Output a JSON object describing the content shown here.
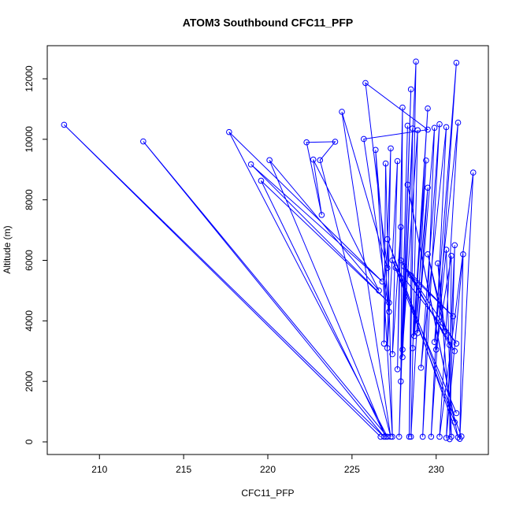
{
  "chart_data": {
    "type": "line",
    "title": "ATOM3 Southbound CFC11_PFP",
    "x_label": "CFC11_PFP",
    "y_label": "Altitude (m)",
    "color": "#0000ff",
    "markers": true,
    "xlim": [
      206.9,
      233.1
    ],
    "ylim": [
      -417,
      13094
    ],
    "xticks": [
      210,
      215,
      220,
      225,
      230
    ],
    "yticks": [
      0,
      2000,
      4000,
      6000,
      8000,
      10000,
      12000
    ],
    "x": [
      226.7,
      207.9,
      226.9,
      212.6,
      227.1,
      217.7,
      226.8,
      219.0,
      227.2,
      219.6,
      227.0,
      220.1,
      226.6,
      222.7,
      223.2,
      222.3,
      224.0,
      223.1,
      227.3,
      224.4,
      227.1,
      225.8,
      229.5,
      225.7,
      227.2,
      226.4,
      227.4,
      227.0,
      226.9,
      227.3,
      227.1,
      227.7,
      227.4,
      227.9,
      227.7,
      228.0,
      227.9,
      228.3,
      227.8,
      228.5,
      228.0,
      228.8,
      228.4,
      228.6,
      228.0,
      228.9,
      228.5,
      229.4,
      228.6,
      229.5,
      228.7,
      229.5,
      228.9,
      229.9,
      229.2,
      230.2,
      229.1,
      230.6,
      229.7,
      231.2,
      229.9,
      231.3,
      230.2,
      232.2,
      231.4,
      231.6,
      230.6,
      231.1,
      230.8,
      230.9,
      230.0,
      230.6,
      230.9,
      230.1,
      230.5,
      229.5,
      230.8,
      228.5,
      231.0,
      228.1,
      231.1,
      227.9,
      231.2,
      227.6,
      231.2,
      227.4,
      231.1,
      228.3,
      231.3,
      227.1,
      231.5
    ],
    "values": [
      170,
      10480,
      170,
      9930,
      170,
      10240,
      5300,
      9170,
      4600,
      8630,
      170,
      9310,
      5000,
      9330,
      7500,
      9900,
      9920,
      9310,
      170,
      10910,
      5750,
      11860,
      10320,
      10010,
      4300,
      9650,
      170,
      9200,
      3250,
      9700,
      3100,
      9280,
      2900,
      7100,
      2400,
      11050,
      2000,
      10450,
      170,
      11650,
      2800,
      12570,
      170,
      10360,
      3050,
      10300,
      170,
      9300,
      3100,
      11020,
      3500,
      8400,
      3600,
      10380,
      170,
      10500,
      2450,
      10400,
      170,
      12530,
      3300,
      10550,
      170,
      8900,
      100,
      6200,
      130,
      6500,
      90,
      6150,
      3050,
      6350,
      170,
      5900,
      3650,
      6200,
      3200,
      5500,
      4150,
      5800,
      3000,
      6000,
      3250,
      5750,
      950,
      6000,
      650,
      8500,
      150,
      6700,
      180
    ]
  }
}
